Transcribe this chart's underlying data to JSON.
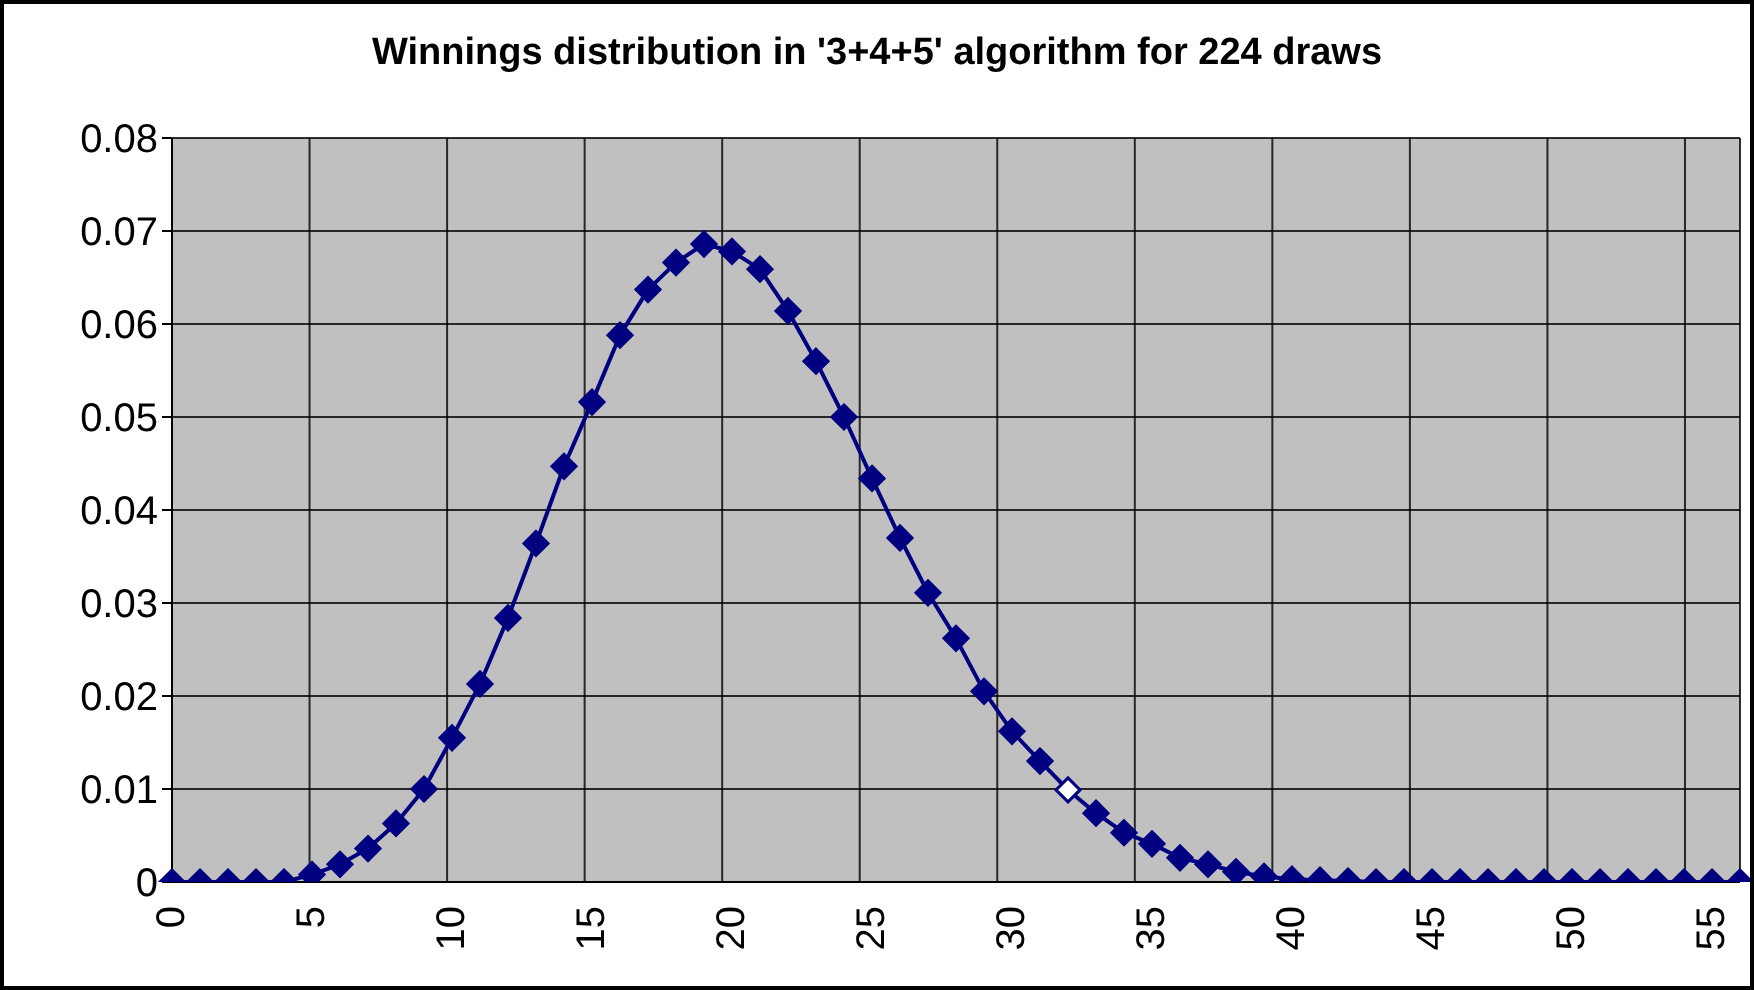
{
  "chart_data": {
    "type": "line",
    "title": "Winnings distribution in '3+4+5' algorithm for 224 draws",
    "categories": [
      "0",
      null,
      null,
      null,
      null,
      "5",
      null,
      null,
      null,
      null,
      "10",
      null,
      null,
      null,
      null,
      "15",
      null,
      null,
      null,
      null,
      "20",
      null,
      null,
      null,
      null,
      "25",
      null,
      null,
      null,
      null,
      "30",
      null,
      null,
      null,
      null,
      "35",
      null,
      null,
      null,
      null,
      "40",
      null,
      null,
      null,
      null,
      "45",
      null,
      null,
      null,
      null,
      "50",
      null,
      null,
      null,
      null,
      "55",
      null
    ],
    "series": [
      {
        "color": "#000080",
        "values": [
          0,
          0,
          0,
          0,
          0,
          0.0008,
          0.0019,
          0.0036,
          0.0063,
          0.01,
          0.0155,
          0.0213,
          0.0284,
          0.0364,
          0.0447,
          0.0516,
          0.0588,
          0.0637,
          0.0666,
          0.0686,
          0.0678,
          0.0659,
          0.0614,
          0.056,
          0.05,
          0.0434,
          0.037,
          0.0311,
          0.0262,
          0.0205,
          0.0162,
          0.013,
          0.0099,
          0.0074,
          0.0053,
          0.0041,
          0.0026,
          0.0019,
          0.0011,
          0.0006,
          0.0003,
          0.0002,
          0.0001,
          0,
          0,
          0,
          0,
          0,
          0,
          0,
          0,
          0,
          0,
          0,
          0,
          0,
          0
        ],
        "colors": [
          "#000080",
          "#000080",
          "#000080",
          "#000080",
          "#000080",
          "#000080",
          "#000080",
          "#000080",
          "#000080",
          "#000080",
          "#000080",
          "#000080",
          "#000080",
          "#000080",
          "#000080",
          "#000080",
          "#000080",
          "#000080",
          "#000080",
          "#000080",
          "#000080",
          "#000080",
          "#000080",
          "#000080",
          "#000080",
          "#000080",
          "#000080",
          "#000080",
          "#000080",
          "#000080",
          "#000080",
          "#000080",
          "#ffffff",
          "#000080",
          "#000080",
          "#000080",
          "#000080",
          "#000080",
          "#000080",
          "#000080",
          "#000080",
          "#000080",
          "#000080",
          "#000080",
          "#000080",
          "#000080",
          "#000080",
          "#000080",
          "#000080",
          "#000080",
          "#000080",
          "#000080",
          "#000080",
          "#000080",
          "#000080",
          "#000080",
          "#000080"
        ]
      }
    ],
    "ylim": [
      0,
      0.08
    ],
    "yticks": [
      0,
      0.01,
      0.02,
      0.03,
      0.04,
      0.05,
      0.06,
      0.07,
      0.08
    ],
    "grid": true,
    "marker": "diamond",
    "line_style": "solid"
  }
}
